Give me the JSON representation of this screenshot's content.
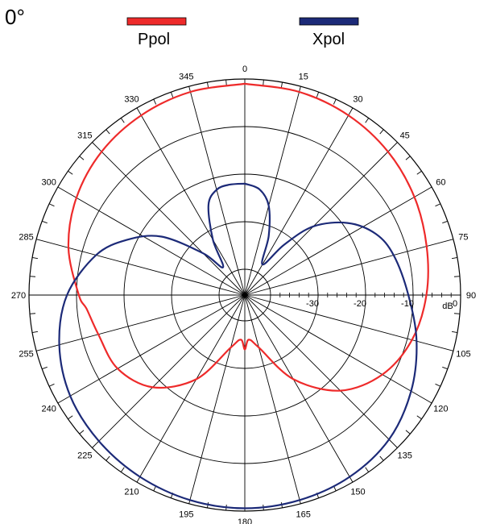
{
  "chart_data": {
    "type": "polar-line",
    "title": "0°",
    "radial_unit": "dB",
    "radial_range": [
      -40,
      0
    ],
    "radial_ticks": [
      -30,
      -20,
      -10,
      0
    ],
    "angle_ticks": [
      0,
      15,
      30,
      45,
      60,
      75,
      90,
      105,
      120,
      135,
      150,
      165,
      180,
      195,
      210,
      225,
      240,
      255,
      270,
      285,
      300,
      315,
      330,
      345
    ],
    "angle_direction": "clockwise",
    "angle_zero": "top",
    "grid": true,
    "legend_position": "top",
    "series": [
      {
        "name": "Ppol",
        "color": "#ee2a2a",
        "points": [
          [
            0,
            -1.0
          ],
          [
            15,
            -1.2
          ],
          [
            30,
            -1.8
          ],
          [
            45,
            -2.8
          ],
          [
            60,
            -4.2
          ],
          [
            75,
            -5.8
          ],
          [
            90,
            -7.2
          ],
          [
            105,
            -9.0
          ],
          [
            120,
            -12.0
          ],
          [
            135,
            -17.0
          ],
          [
            150,
            -25.0
          ],
          [
            165,
            -34.0
          ],
          [
            175,
            -36.0
          ],
          [
            180,
            -34.0
          ],
          [
            185,
            -36.0
          ],
          [
            195,
            -34.0
          ],
          [
            210,
            -25.0
          ],
          [
            225,
            -18.0
          ],
          [
            240,
            -14.5
          ],
          [
            255,
            -13.5
          ],
          [
            265,
            -12.0
          ],
          [
            270,
            -10.5
          ],
          [
            285,
            -7.0
          ],
          [
            300,
            -4.5
          ],
          [
            315,
            -2.8
          ],
          [
            330,
            -1.8
          ],
          [
            345,
            -1.2
          ],
          [
            360,
            -1.0
          ]
        ]
      },
      {
        "name": "Xpol",
        "color": "#1c2a78",
        "points": [
          [
            0,
            -22.0
          ],
          [
            8,
            -23.0
          ],
          [
            15,
            -26.0
          ],
          [
            22,
            -32.0
          ],
          [
            30,
            -38.0
          ],
          [
            38,
            -32.0
          ],
          [
            45,
            -25.0
          ],
          [
            55,
            -19.0
          ],
          [
            65,
            -15.0
          ],
          [
            75,
            -13.0
          ],
          [
            90,
            -11.0
          ],
          [
            105,
            -8.0
          ],
          [
            120,
            -5.0
          ],
          [
            135,
            -2.5
          ],
          [
            150,
            -1.3
          ],
          [
            165,
            -0.8
          ],
          [
            180,
            -0.6
          ],
          [
            195,
            -0.8
          ],
          [
            210,
            -1.3
          ],
          [
            225,
            -2.0
          ],
          [
            240,
            -3.0
          ],
          [
            255,
            -5.0
          ],
          [
            270,
            -8.0
          ],
          [
            285,
            -13.0
          ],
          [
            295,
            -18.0
          ],
          [
            305,
            -24.0
          ],
          [
            315,
            -33.0
          ],
          [
            322,
            -38.0
          ],
          [
            330,
            -32.0
          ],
          [
            338,
            -25.0
          ],
          [
            345,
            -22.5
          ],
          [
            352,
            -22.0
          ],
          [
            360,
            -22.0
          ]
        ]
      }
    ]
  }
}
